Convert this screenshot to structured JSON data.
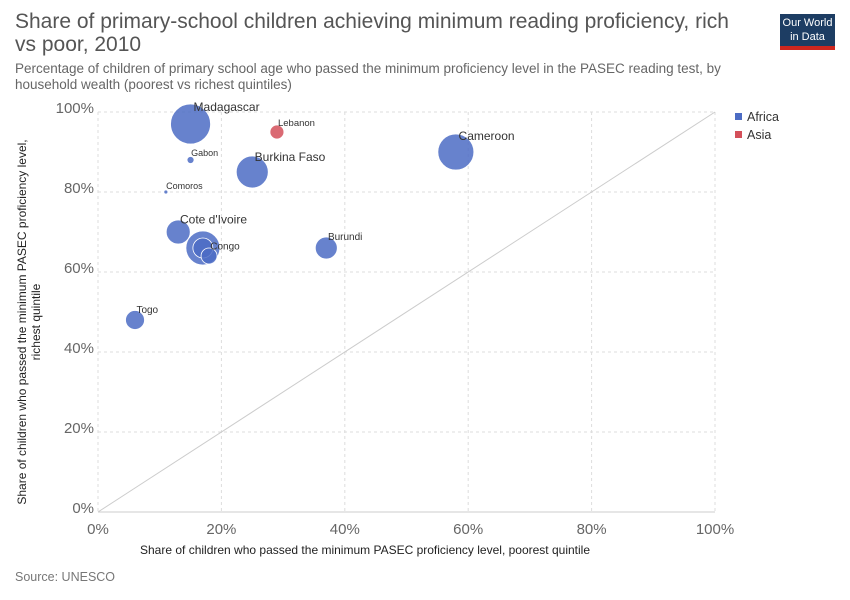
{
  "header": {
    "title": "Share of primary-school children achieving minimum reading proficiency, rich vs poor, 2010",
    "subtitle": "Percentage of children of primary school age who passed the minimum proficiency level in the PASEC reading test, by household wealth (poorest vs richest quintiles)",
    "logo_line1": "Our World",
    "logo_line2": "in Data"
  },
  "footer": {
    "source": "Source: UNESCO"
  },
  "chart_data": {
    "type": "scatter",
    "xlabel": "Share of children who passed the minimum PASEC proficiency level, poorest quintile",
    "ylabel_line1": "Share of children who passed the minimum PASEC proficiency level,",
    "ylabel_line2": "richest quintile",
    "xlim": [
      0,
      100
    ],
    "ylim": [
      0,
      100
    ],
    "x_ticks": [
      "0%",
      "20%",
      "40%",
      "60%",
      "80%",
      "100%"
    ],
    "y_ticks": [
      "0%",
      "20%",
      "40%",
      "60%",
      "80%",
      "100%"
    ],
    "grid": true,
    "reference_line": "y = x",
    "legend_position": "top-right",
    "series": [
      {
        "name": "Africa",
        "color": "#4c6cc4"
      },
      {
        "name": "Asia",
        "color": "#d4505a"
      }
    ],
    "points": [
      {
        "label": "Madagascar",
        "series": "Africa",
        "x": 15,
        "y": 97,
        "size": 20,
        "label_size": 12
      },
      {
        "label": "Lebanon",
        "series": "Asia",
        "x": 29,
        "y": 95,
        "size": 7,
        "label_size": 9.5
      },
      {
        "label": "Gabon",
        "series": "Africa",
        "x": 15,
        "y": 88,
        "size": 3.5,
        "label_size": 9
      },
      {
        "label": "Comoros",
        "series": "Africa",
        "x": 11,
        "y": 80,
        "size": 2,
        "label_size": 9
      },
      {
        "label": "Burkina Faso",
        "series": "Africa",
        "x": 25,
        "y": 85,
        "size": 16,
        "label_size": 12
      },
      {
        "label": "Cameroon",
        "series": "Africa",
        "x": 58,
        "y": 90,
        "size": 18,
        "label_size": 12
      },
      {
        "label": "Cote d'Ivoire",
        "series": "Africa",
        "x": 13,
        "y": 70,
        "size": 12,
        "label_size": 12
      },
      {
        "label": "",
        "series": "Africa",
        "x": 17,
        "y": 66,
        "size": 17
      },
      {
        "label": "",
        "series": "Africa",
        "x": 17,
        "y": 66,
        "size": 10
      },
      {
        "label": "Congo",
        "series": "Africa",
        "x": 18,
        "y": 64,
        "size": 8,
        "label_size": 10
      },
      {
        "label": "Burundi",
        "series": "Africa",
        "x": 37,
        "y": 66,
        "size": 11,
        "label_size": 10
      },
      {
        "label": "Togo",
        "series": "Africa",
        "x": 6,
        "y": 48,
        "size": 9.5,
        "label_size": 10
      }
    ]
  }
}
